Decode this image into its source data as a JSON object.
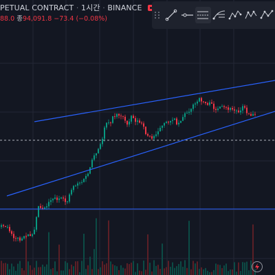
{
  "header": {
    "symbol_title": "PETUAL CONTRACT",
    "interval": "1시간",
    "exchange": "BINANCE",
    "ohlc_prefix": "88.0",
    "close_label": "종",
    "close_value": "94,091.8",
    "change": "−73.4",
    "change_pct": "(−0.08%)"
  },
  "toolbar": {
    "tools": [
      "trend-line-tool",
      "horizontal-ray-tool",
      "parallel-channel-tool",
      "fib-retracement-tool",
      "pitchfork-tool",
      "xabcd-pattern-tool",
      "abcd-pattern-tool"
    ]
  },
  "colors": {
    "background": "#131722",
    "grid": "#232735",
    "up": "#089981",
    "down": "#f23645",
    "vol_up": "#0c4b45",
    "vol_down": "#5c1f26",
    "channel": "#2962ff",
    "dashed_price": "#b2b5be",
    "text": "#d1d4dc"
  }
}
